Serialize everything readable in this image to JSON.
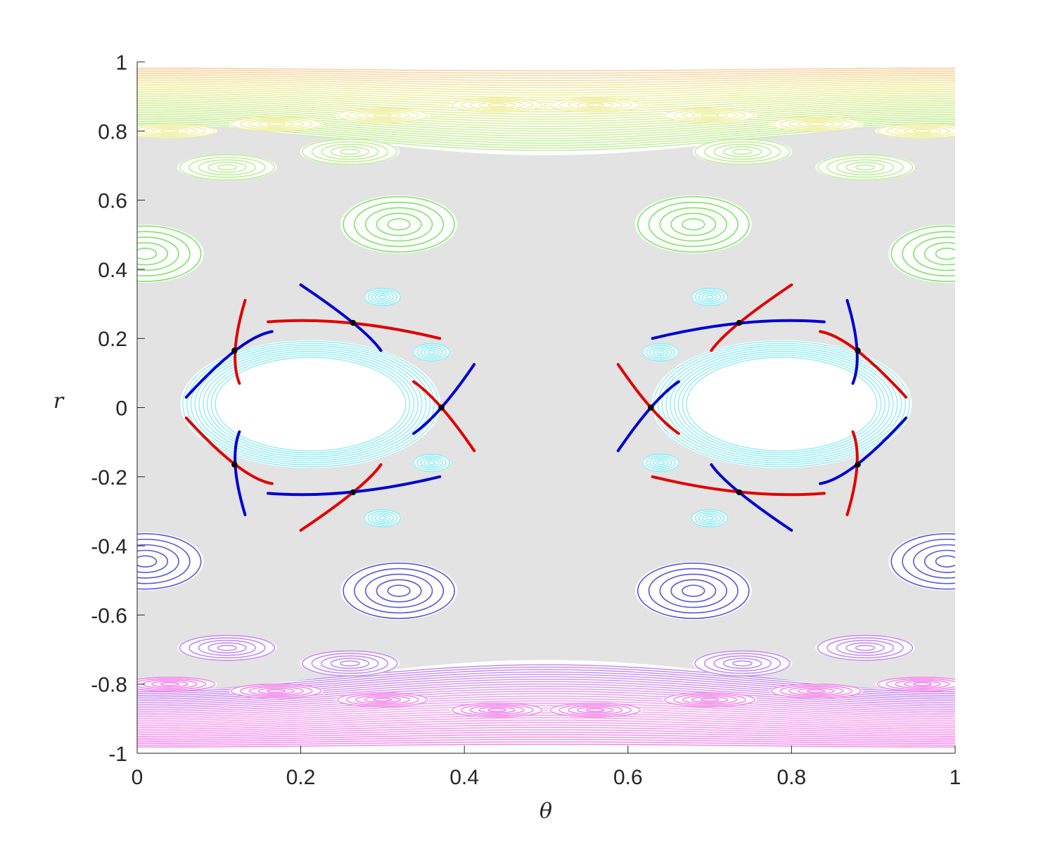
{
  "chart_data": {
    "type": "scatter",
    "title": "",
    "xlabel": "θ",
    "ylabel": "r",
    "xlim": [
      0,
      1
    ],
    "ylim": [
      -1,
      1
    ],
    "x_ticks": [
      {
        "value": 0,
        "label": "0"
      },
      {
        "value": 0.2,
        "label": "0.2"
      },
      {
        "value": 0.4,
        "label": "0.4"
      },
      {
        "value": 0.6,
        "label": "0.6"
      },
      {
        "value": 0.8,
        "label": "0.8"
      },
      {
        "value": 1,
        "label": "1"
      }
    ],
    "y_ticks": [
      {
        "value": 1,
        "label": "1"
      },
      {
        "value": 0.8,
        "label": "0.8"
      },
      {
        "value": 0.6,
        "label": "0.6"
      },
      {
        "value": 0.4,
        "label": "0.4"
      },
      {
        "value": 0.2,
        "label": "0.2"
      },
      {
        "value": 0,
        "label": "0"
      },
      {
        "value": -0.2,
        "label": "-0.2"
      },
      {
        "value": -0.4,
        "label": "-0.4"
      },
      {
        "value": -0.6,
        "label": "-0.6"
      },
      {
        "value": -0.8,
        "label": "-0.8"
      },
      {
        "value": -1,
        "label": "-1"
      }
    ],
    "grid": false,
    "legend": "none",
    "colors": {
      "chaos": "#e3e3e3",
      "core": "#ffffff",
      "cyan_tori": "#7fe8f0",
      "green_tori": "#66e04a",
      "light_green_tori": "#b5ea8a",
      "yellow_tori": "#ecec90",
      "orange_tori": "#f5c58e",
      "blue_tori": "#3a3ad6",
      "violet_tori": "#b57af0",
      "magenta_tori": "#ee77e6",
      "unstable_manifold": "#e00000",
      "stable_manifold": "#0000d0",
      "periodic_points": "#000000"
    },
    "white_cores": [
      {
        "center": [
          0.212,
          0.01
        ],
        "rx": 0.142,
        "ry": 0.165
      },
      {
        "center": [
          0.788,
          0.01
        ],
        "rx": 0.142,
        "ry": 0.165
      }
    ],
    "island_chains": [
      {
        "name": "cyan-small",
        "color": "cyan_tori",
        "centers": [
          [
            0.3,
            0.32
          ],
          [
            0.36,
            0.16
          ],
          [
            0.36,
            -0.16
          ],
          [
            0.3,
            -0.32
          ],
          [
            0.09,
            0
          ],
          [
            0.7,
            0.32
          ],
          [
            0.64,
            0.16
          ],
          [
            0.64,
            -0.16
          ],
          [
            0.7,
            -0.32
          ],
          [
            0.91,
            0
          ]
        ],
        "rx": 0.022,
        "ry": 0.025
      },
      {
        "name": "green-large",
        "color": "green_tori",
        "centers": [
          [
            0.32,
            0.53
          ],
          [
            0.68,
            0.53
          ],
          [
            0.01,
            0.445
          ],
          [
            0.99,
            0.445
          ]
        ],
        "rx": 0.068,
        "ry": 0.08
      },
      {
        "name": "green-upper",
        "color": "light_green_tori",
        "centers": [
          [
            0.11,
            0.695
          ],
          [
            0.89,
            0.695
          ],
          [
            0.26,
            0.74
          ],
          [
            0.74,
            0.74
          ]
        ],
        "rx": 0.058,
        "ry": 0.036
      },
      {
        "name": "yellow-chain",
        "color": "yellow_tori",
        "centers": [
          [
            0.04,
            0.8
          ],
          [
            0.17,
            0.82
          ],
          [
            0.3,
            0.845
          ],
          [
            0.44,
            0.875
          ],
          [
            0.56,
            0.875
          ],
          [
            0.7,
            0.845
          ],
          [
            0.83,
            0.82
          ],
          [
            0.96,
            0.8
          ]
        ],
        "rx": 0.055,
        "ry": 0.02
      },
      {
        "name": "blue-large",
        "color": "blue_tori",
        "centers": [
          [
            0.32,
            -0.53
          ],
          [
            0.68,
            -0.53
          ],
          [
            0.01,
            -0.445
          ],
          [
            0.99,
            -0.445
          ]
        ],
        "rx": 0.068,
        "ry": 0.08
      },
      {
        "name": "violet-lower",
        "color": "violet_tori",
        "centers": [
          [
            0.11,
            -0.695
          ],
          [
            0.89,
            -0.695
          ],
          [
            0.26,
            -0.74
          ],
          [
            0.74,
            -0.74
          ]
        ],
        "rx": 0.058,
        "ry": 0.036
      },
      {
        "name": "magenta-chain",
        "color": "magenta_tori",
        "centers": [
          [
            0.04,
            -0.8
          ],
          [
            0.17,
            -0.82
          ],
          [
            0.3,
            -0.845
          ],
          [
            0.44,
            -0.875
          ],
          [
            0.56,
            -0.875
          ],
          [
            0.7,
            -0.845
          ],
          [
            0.83,
            -0.82
          ],
          [
            0.96,
            -0.8
          ]
        ],
        "rx": 0.055,
        "ry": 0.02
      }
    ],
    "periodic_orbits": [
      {
        "name": "hyperbolic-period-5-left",
        "points": [
          [
            0.264,
            0.245
          ],
          [
            0.119,
            0.165
          ],
          [
            0.119,
            -0.165
          ],
          [
            0.264,
            -0.245
          ],
          [
            0.372,
            0.0
          ]
        ]
      },
      {
        "name": "hyperbolic-period-5-right",
        "points": [
          [
            0.736,
            0.245
          ],
          [
            0.881,
            0.165
          ],
          [
            0.881,
            -0.165
          ],
          [
            0.736,
            -0.245
          ],
          [
            0.628,
            0.0
          ]
        ]
      }
    ],
    "manifolds": [
      {
        "name": "unstable-left-1",
        "color": "unstable_manifold",
        "points": [
          [
            0.16,
            0.248
          ],
          [
            0.26,
            0.245
          ],
          [
            0.37,
            0.2
          ]
        ]
      },
      {
        "name": "unstable-left-2",
        "color": "unstable_manifold",
        "points": [
          [
            0.132,
            0.31
          ],
          [
            0.12,
            0.17
          ],
          [
            0.125,
            0.07
          ]
        ]
      },
      {
        "name": "unstable-left-3",
        "color": "unstable_manifold",
        "points": [
          [
            0.06,
            -0.03
          ],
          [
            0.12,
            -0.165
          ],
          [
            0.165,
            -0.22
          ]
        ]
      },
      {
        "name": "unstable-left-4",
        "color": "unstable_manifold",
        "points": [
          [
            0.2,
            -0.355
          ],
          [
            0.264,
            -0.245
          ],
          [
            0.298,
            -0.165
          ]
        ]
      },
      {
        "name": "unstable-left-5",
        "color": "unstable_manifold",
        "points": [
          [
            0.338,
            0.075
          ],
          [
            0.372,
            0.0
          ],
          [
            0.412,
            -0.125
          ]
        ]
      },
      {
        "name": "stable-left-1",
        "color": "stable_manifold",
        "points": [
          [
            0.2,
            0.355
          ],
          [
            0.264,
            0.245
          ],
          [
            0.298,
            0.165
          ]
        ]
      },
      {
        "name": "stable-left-2",
        "color": "stable_manifold",
        "points": [
          [
            0.06,
            0.03
          ],
          [
            0.12,
            0.165
          ],
          [
            0.165,
            0.22
          ]
        ]
      },
      {
        "name": "stable-left-3",
        "color": "stable_manifold",
        "points": [
          [
            0.125,
            -0.07
          ],
          [
            0.12,
            -0.17
          ],
          [
            0.132,
            -0.31
          ]
        ]
      },
      {
        "name": "stable-left-4",
        "color": "stable_manifold",
        "points": [
          [
            0.16,
            -0.248
          ],
          [
            0.26,
            -0.245
          ],
          [
            0.37,
            -0.2
          ]
        ]
      },
      {
        "name": "stable-left-5",
        "color": "stable_manifold",
        "points": [
          [
            0.338,
            -0.075
          ],
          [
            0.372,
            0.0
          ],
          [
            0.412,
            0.125
          ]
        ]
      },
      {
        "name": "unstable-right-1",
        "color": "unstable_manifold",
        "points": [
          [
            0.8,
            0.355
          ],
          [
            0.736,
            0.245
          ],
          [
            0.702,
            0.165
          ]
        ]
      },
      {
        "name": "unstable-right-2",
        "color": "unstable_manifold",
        "points": [
          [
            0.94,
            0.03
          ],
          [
            0.88,
            0.165
          ],
          [
            0.835,
            0.22
          ]
        ]
      },
      {
        "name": "unstable-right-3",
        "color": "unstable_manifold",
        "points": [
          [
            0.875,
            -0.07
          ],
          [
            0.88,
            -0.17
          ],
          [
            0.868,
            -0.31
          ]
        ]
      },
      {
        "name": "unstable-right-4",
        "color": "unstable_manifold",
        "points": [
          [
            0.84,
            -0.248
          ],
          [
            0.74,
            -0.245
          ],
          [
            0.63,
            -0.2
          ]
        ]
      },
      {
        "name": "unstable-right-5",
        "color": "unstable_manifold",
        "points": [
          [
            0.662,
            -0.075
          ],
          [
            0.628,
            0.0
          ],
          [
            0.588,
            0.125
          ]
        ]
      },
      {
        "name": "stable-right-1",
        "color": "stable_manifold",
        "points": [
          [
            0.84,
            0.248
          ],
          [
            0.74,
            0.245
          ],
          [
            0.63,
            0.2
          ]
        ]
      },
      {
        "name": "stable-right-2",
        "color": "stable_manifold",
        "points": [
          [
            0.868,
            0.31
          ],
          [
            0.88,
            0.17
          ],
          [
            0.875,
            0.07
          ]
        ]
      },
      {
        "name": "stable-right-3",
        "color": "stable_manifold",
        "points": [
          [
            0.94,
            -0.03
          ],
          [
            0.88,
            -0.165
          ],
          [
            0.835,
            -0.22
          ]
        ]
      },
      {
        "name": "stable-right-4",
        "color": "stable_manifold",
        "points": [
          [
            0.8,
            -0.355
          ],
          [
            0.736,
            -0.245
          ],
          [
            0.702,
            -0.165
          ]
        ]
      },
      {
        "name": "stable-right-5",
        "color": "stable_manifold",
        "points": [
          [
            0.662,
            0.075
          ],
          [
            0.628,
            0.0
          ],
          [
            0.588,
            -0.125
          ]
        ]
      }
    ]
  }
}
